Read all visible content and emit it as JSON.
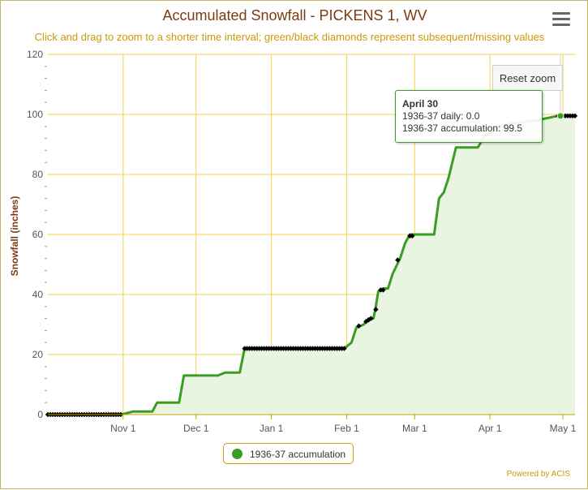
{
  "title": "Accumulated Snowfall - PICKENS 1, WV",
  "subtitle": "Click and drag to zoom to a shorter time interval; green/black diamonds represent subsequent/missing values",
  "menu_icon": "hamburger-menu-icon",
  "reset_zoom_label": "Reset zoom",
  "tooltip": {
    "date": "April 30",
    "daily": "1936-37 daily: 0.0",
    "accumulation": "1936-37 accumulation: 99.5"
  },
  "legend_label": "1936-37 accumulation",
  "credit": "Powered by ACIS",
  "colors": {
    "series": "#3a9d23",
    "area": "#e9f4e1",
    "grid": "#f2d64a",
    "title": "#7a3b12",
    "accent": "#c99a06"
  },
  "chart_data": {
    "type": "area",
    "title": "Accumulated Snowfall - PICKENS 1, WV",
    "ylabel": "Snowfall (inches)",
    "xlabel": "",
    "ylim": [
      0,
      120
    ],
    "yticks": [
      0,
      20,
      40,
      60,
      80,
      100,
      120
    ],
    "xlim": [
      "1936-10-01",
      "1937-05-06"
    ],
    "xticks": [
      {
        "date": "1936-11-01",
        "label": "Nov 1"
      },
      {
        "date": "1936-12-01",
        "label": "Dec 1"
      },
      {
        "date": "1937-01-01",
        "label": "Jan 1"
      },
      {
        "date": "1937-02-01",
        "label": "Feb 1"
      },
      {
        "date": "1937-03-01",
        "label": "Mar 1"
      },
      {
        "date": "1937-04-01",
        "label": "Apr 1"
      },
      {
        "date": "1937-05-01",
        "label": "May 1"
      }
    ],
    "grid": true,
    "legend": "bottom-center",
    "series": [
      {
        "name": "1936-37 accumulation",
        "points": [
          [
            "1936-10-01",
            0
          ],
          [
            "1936-10-31",
            0
          ],
          [
            "1936-11-05",
            1
          ],
          [
            "1936-11-13",
            1
          ],
          [
            "1936-11-15",
            4
          ],
          [
            "1936-11-24",
            4
          ],
          [
            "1936-11-26",
            13
          ],
          [
            "1936-12-10",
            13
          ],
          [
            "1936-12-13",
            14
          ],
          [
            "1936-12-19",
            14
          ],
          [
            "1936-12-21",
            22
          ],
          [
            "1937-01-31",
            22
          ],
          [
            "1937-02-03",
            24
          ],
          [
            "1937-02-05",
            29
          ],
          [
            "1937-02-08",
            30
          ],
          [
            "1937-02-10",
            32
          ],
          [
            "1937-02-12",
            32
          ],
          [
            "1937-02-13",
            36
          ],
          [
            "1937-02-14",
            41
          ],
          [
            "1937-02-16",
            42
          ],
          [
            "1937-02-18",
            42
          ],
          [
            "1937-02-20",
            47
          ],
          [
            "1937-02-23",
            52
          ],
          [
            "1937-02-25",
            57
          ],
          [
            "1937-02-27",
            60
          ],
          [
            "1937-03-09",
            60
          ],
          [
            "1937-03-11",
            72
          ],
          [
            "1937-03-13",
            74
          ],
          [
            "1937-03-15",
            79
          ],
          [
            "1937-03-18",
            89
          ],
          [
            "1937-03-27",
            89
          ],
          [
            "1937-03-30",
            93
          ],
          [
            "1937-04-02",
            94
          ],
          [
            "1937-04-05",
            96
          ],
          [
            "1937-04-10",
            97
          ],
          [
            "1937-04-20",
            98
          ],
          [
            "1937-04-29",
            99.5
          ],
          [
            "1937-05-06",
            99.5
          ]
        ]
      }
    ],
    "markers": {
      "description_free": true,
      "ranges": [
        [
          "1936-10-01",
          "1936-10-31",
          0
        ],
        [
          "1936-12-21",
          "1937-01-31",
          22
        ],
        [
          "1937-04-29",
          "1937-05-06",
          99.5
        ]
      ],
      "points": [
        [
          "1937-02-06",
          29.5
        ],
        [
          "1937-02-09",
          31
        ],
        [
          "1937-02-10",
          31.5
        ],
        [
          "1937-02-11",
          32
        ],
        [
          "1937-02-13",
          35
        ],
        [
          "1937-02-15",
          41.5
        ],
        [
          "1937-02-16",
          41.5
        ],
        [
          "1937-02-22",
          51.5
        ],
        [
          "1937-02-27",
          59.5
        ],
        [
          "1937-02-28",
          59.5
        ]
      ]
    },
    "hover": {
      "date": "1937-04-30",
      "value": 99.5
    }
  }
}
